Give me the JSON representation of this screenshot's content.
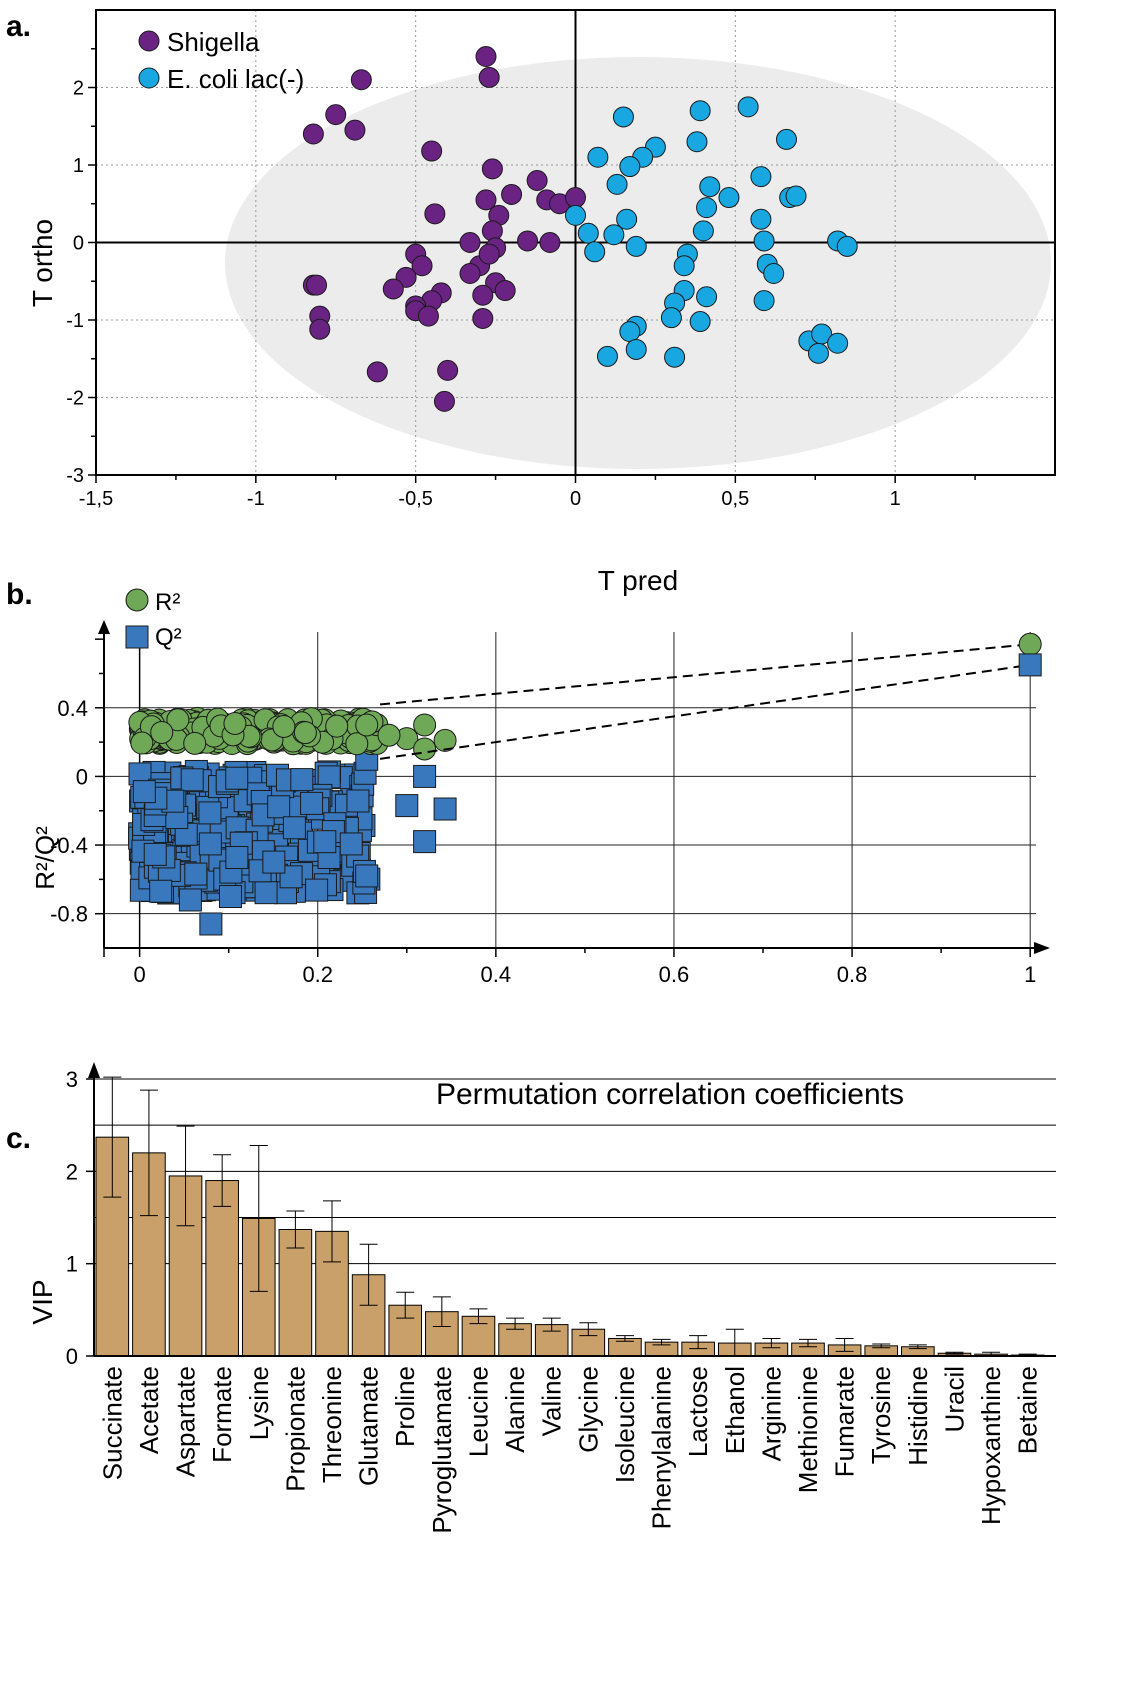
{
  "panels": {
    "a": "a.",
    "b": "b.",
    "c": "c."
  },
  "colors": {
    "shigella": "#6a2382",
    "ecoli": "#18a7e0",
    "r2": "#6fa856",
    "q2": "#3a78bd",
    "vip": "#caa06a",
    "ellipse": "#ececec"
  },
  "chart_data": [
    {
      "type": "scatter",
      "xlabel": "T pred",
      "ylabel": "T ortho",
      "xlim": [
        -1.5,
        1.5
      ],
      "ylim": [
        -3,
        3
      ],
      "xticks": [
        -1.5,
        -1,
        -0.5,
        0,
        0.5,
        1
      ],
      "xtick_labels": [
        "-1,5",
        "-1",
        "-0,5",
        "0",
        "0,5",
        "1"
      ],
      "yticks": [
        -3,
        -2,
        -1,
        0,
        1,
        2
      ],
      "ytick_labels": [
        "-3",
        "-2",
        "-1",
        "0",
        "1",
        "2"
      ],
      "grid": true,
      "legend_placement": "top-left",
      "series": [
        {
          "name": "Shigella",
          "points": [
            [
              -0.28,
              2.4
            ],
            [
              -0.27,
              2.13
            ],
            [
              -0.67,
              2.1
            ],
            [
              -0.75,
              1.65
            ],
            [
              -0.69,
              1.45
            ],
            [
              -0.82,
              1.4
            ],
            [
              -0.45,
              1.18
            ],
            [
              -0.26,
              0.95
            ],
            [
              -0.12,
              0.8
            ],
            [
              -0.2,
              0.62
            ],
            [
              -0.28,
              0.55
            ],
            [
              -0.09,
              0.55
            ],
            [
              -0.05,
              0.5
            ],
            [
              -0.24,
              0.35
            ],
            [
              -0.44,
              0.37
            ],
            [
              -0.26,
              0.15
            ],
            [
              0.0,
              0.58
            ],
            [
              -0.33,
              0.0
            ],
            [
              -0.25,
              -0.07
            ],
            [
              -0.15,
              0.02
            ],
            [
              -0.08,
              0.0
            ],
            [
              -0.5,
              -0.15
            ],
            [
              -0.48,
              -0.3
            ],
            [
              -0.53,
              -0.45
            ],
            [
              -0.3,
              -0.3
            ],
            [
              -0.33,
              -0.4
            ],
            [
              -0.25,
              -0.52
            ],
            [
              -0.22,
              -0.62
            ],
            [
              -0.57,
              -0.6
            ],
            [
              -0.82,
              -0.55
            ],
            [
              -0.81,
              -0.55
            ],
            [
              -0.42,
              -0.65
            ],
            [
              -0.29,
              -0.68
            ],
            [
              -0.45,
              -0.75
            ],
            [
              -0.5,
              -0.82
            ],
            [
              -0.5,
              -0.88
            ],
            [
              -0.46,
              -0.95
            ],
            [
              -0.29,
              -0.98
            ],
            [
              -0.8,
              -0.95
            ],
            [
              -0.8,
              -1.12
            ],
            [
              -0.62,
              -1.67
            ],
            [
              -0.4,
              -1.65
            ],
            [
              -0.41,
              -2.05
            ],
            [
              -0.27,
              -0.15
            ]
          ]
        },
        {
          "name": "E. coli lac(-)",
          "points": [
            [
              0.15,
              1.62
            ],
            [
              0.39,
              1.7
            ],
            [
              0.54,
              1.75
            ],
            [
              0.66,
              1.33
            ],
            [
              0.38,
              1.3
            ],
            [
              0.25,
              1.23
            ],
            [
              0.21,
              1.1
            ],
            [
              0.07,
              1.1
            ],
            [
              0.17,
              0.98
            ],
            [
              0.13,
              0.75
            ],
            [
              0.42,
              0.72
            ],
            [
              0.48,
              0.58
            ],
            [
              0.67,
              0.58
            ],
            [
              0.69,
              0.6
            ],
            [
              0.58,
              0.85
            ],
            [
              0.41,
              0.45
            ],
            [
              0.16,
              0.3
            ],
            [
              0.0,
              0.35
            ],
            [
              0.4,
              0.15
            ],
            [
              0.58,
              0.3
            ],
            [
              0.04,
              0.12
            ],
            [
              0.12,
              0.1
            ],
            [
              0.19,
              -0.05
            ],
            [
              0.06,
              -0.12
            ],
            [
              0.35,
              -0.15
            ],
            [
              0.59,
              0.02
            ],
            [
              0.82,
              0.02
            ],
            [
              0.85,
              -0.05
            ],
            [
              0.6,
              -0.28
            ],
            [
              0.62,
              -0.4
            ],
            [
              0.34,
              -0.3
            ],
            [
              0.34,
              -0.62
            ],
            [
              0.31,
              -0.78
            ],
            [
              0.41,
              -0.7
            ],
            [
              0.59,
              -0.75
            ],
            [
              0.3,
              -0.97
            ],
            [
              0.39,
              -1.02
            ],
            [
              0.19,
              -1.08
            ],
            [
              0.17,
              -1.15
            ],
            [
              0.19,
              -1.38
            ],
            [
              0.1,
              -1.47
            ],
            [
              0.31,
              -1.48
            ],
            [
              0.73,
              -1.27
            ],
            [
              0.77,
              -1.18
            ],
            [
              0.82,
              -1.3
            ],
            [
              0.76,
              -1.43
            ]
          ]
        }
      ]
    },
    {
      "type": "scatter",
      "xlabel": "Permutation correlation coefficients",
      "ylabel": "R²/Q²",
      "xlim": [
        -0.04,
        1.02
      ],
      "ylim": [
        -1.0,
        0.9
      ],
      "xticks": [
        0,
        0.2,
        0.4,
        0.6,
        0.8,
        1
      ],
      "xtick_labels": [
        "0",
        "0.2",
        "0.4",
        "0.6",
        "0.8",
        "1"
      ],
      "yticks": [
        0.4,
        0,
        -0.4,
        -0.8
      ],
      "ytick_labels": [
        "0.4",
        "0",
        "-0.4",
        "-0.8"
      ],
      "grid": true,
      "legend_placement": "top-left",
      "series": [
        {
          "name": "R²",
          "marker": "circle",
          "original": [
            1.0,
            0.77
          ]
        },
        {
          "name": "Q²",
          "marker": "square",
          "original": [
            1.0,
            0.65
          ]
        }
      ],
      "regression_lines": [
        {
          "series": "R²",
          "from": [
            0,
            0.29
          ],
          "to": [
            1.0,
            0.77
          ]
        },
        {
          "series": "Q²",
          "from": [
            0,
            -0.1
          ],
          "to": [
            1.0,
            0.65
          ]
        }
      ],
      "r2_permutations": {
        "x_range": [
          0.0,
          0.34
        ],
        "y_range": [
          0.15,
          0.34
        ]
      },
      "q2_permutations": {
        "x_range": [
          0.0,
          0.34
        ],
        "y_range": [
          -0.86,
          0.1
        ]
      }
    },
    {
      "type": "bar",
      "ylabel": "VIP",
      "ylim": [
        0,
        3.1
      ],
      "yticks": [
        0,
        1,
        2,
        3
      ],
      "ytick_labels": [
        "0",
        "1",
        "2",
        "3"
      ],
      "gridlines": [
        1,
        1.5,
        2,
        2.5,
        3
      ],
      "categories": [
        "Succinate",
        "Acetate",
        "Aspartate",
        "Formate",
        "Lysine",
        "Propionate",
        "Threonine",
        "Glutamate",
        "Proline",
        "Pyroglutamate",
        "Leucine",
        "Alanine",
        "Valine",
        "Glycine",
        "Isoleucine",
        "Phenylalanine",
        "Lactose",
        "Ethanol",
        "Arginine",
        "Methionine",
        "Fumarate",
        "Tyrosine",
        "Histidine",
        "Uracil",
        "Hypoxanthine",
        "Betaine"
      ],
      "values": [
        2.37,
        2.2,
        1.95,
        1.9,
        1.49,
        1.37,
        1.35,
        0.88,
        0.55,
        0.48,
        0.43,
        0.35,
        0.34,
        0.29,
        0.19,
        0.15,
        0.15,
        0.14,
        0.14,
        0.14,
        0.12,
        0.11,
        0.1,
        0.03,
        0.02,
        0.01
      ],
      "errors": [
        0.65,
        0.68,
        0.54,
        0.28,
        0.79,
        0.2,
        0.33,
        0.33,
        0.14,
        0.16,
        0.08,
        0.06,
        0.07,
        0.07,
        0.03,
        0.03,
        0.07,
        0.15,
        0.05,
        0.04,
        0.07,
        0.02,
        0.02,
        0.01,
        0.02,
        0.01
      ]
    }
  ]
}
